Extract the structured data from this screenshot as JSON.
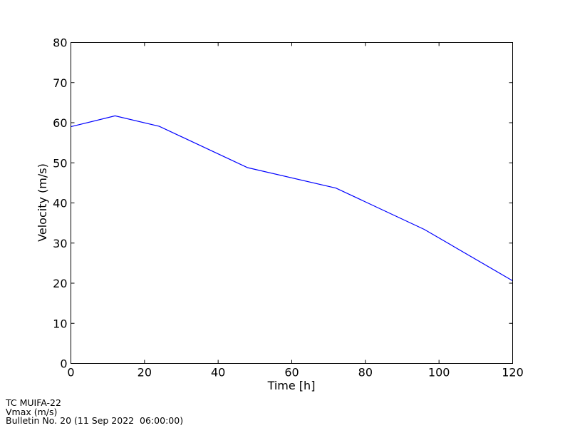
{
  "chart_data": {
    "type": "line",
    "title": "",
    "xlabel": "Time [h]",
    "ylabel": "Velocity (m/s)",
    "xlim": [
      0,
      120
    ],
    "ylim": [
      0,
      80
    ],
    "xticks": [
      0,
      20,
      40,
      60,
      80,
      100,
      120
    ],
    "yticks": [
      0,
      10,
      20,
      30,
      40,
      50,
      60,
      70,
      80
    ],
    "grid": false,
    "series": [
      {
        "color": "#0000ff",
        "x": [
          0,
          12,
          24,
          48,
          72,
          96,
          120
        ],
        "y": [
          59.0,
          61.7,
          59.1,
          48.8,
          43.7,
          33.4,
          20.6
        ]
      }
    ]
  },
  "footer": {
    "line1": "TC MUIFA-22",
    "line2": "Vmax (m/s)",
    "line3": "Bulletin No. 20 (11 Sep 2022  06:00:00)"
  }
}
